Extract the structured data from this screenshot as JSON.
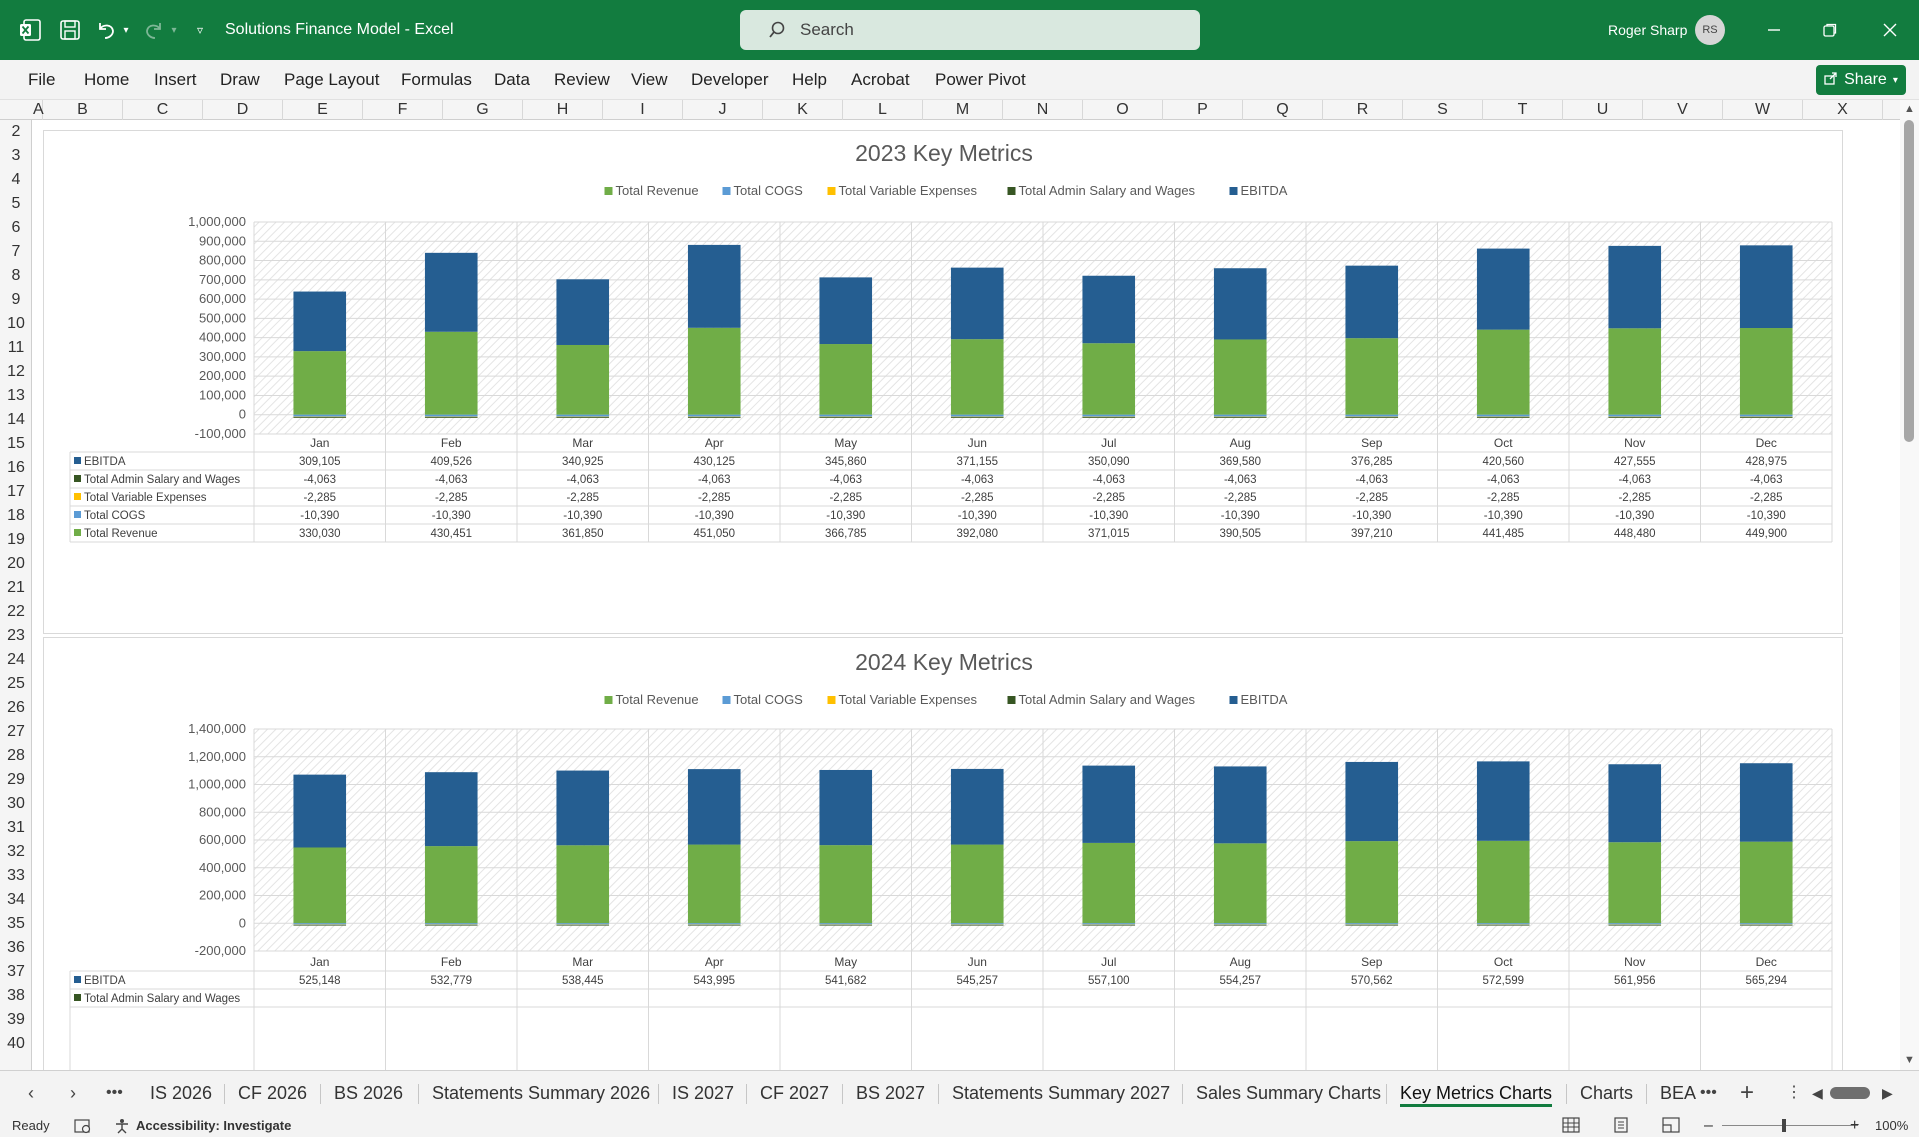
{
  "app": {
    "title": "Solutions Finance Model  -  Excel",
    "search_placeholder": "Search",
    "user_name": "Roger Sharp",
    "user_initials": "RS",
    "share_label": "Share",
    "accent": "#127c3f"
  },
  "ribbon_tabs": [
    "File",
    "Home",
    "Insert",
    "Draw",
    "Page Layout",
    "Formulas",
    "Data",
    "Review",
    "View",
    "Developer",
    "Help",
    "Acrobat",
    "Power Pivot"
  ],
  "columns": [
    "A",
    "B",
    "C",
    "D",
    "E",
    "F",
    "G",
    "H",
    "I",
    "J",
    "K",
    "L",
    "M",
    "N",
    "O",
    "P",
    "Q",
    "R",
    "S",
    "T",
    "U",
    "V",
    "W",
    "X"
  ],
  "rows": [
    "2",
    "3",
    "4",
    "5",
    "6",
    "7",
    "8",
    "9",
    "10",
    "11",
    "12",
    "13",
    "14",
    "15",
    "16",
    "17",
    "18",
    "19",
    "20",
    "21",
    "22",
    "23",
    "24",
    "25",
    "26",
    "27",
    "28",
    "29",
    "30",
    "31",
    "32",
    "33",
    "34",
    "35",
    "36",
    "37",
    "38",
    "39",
    "40"
  ],
  "sheet_tabs": [
    "IS 2026",
    "CF 2026",
    "BS 2026",
    "Statements Summary 2026",
    "IS 2027",
    "CF 2027",
    "BS 2027",
    "Statements Summary 2027",
    "Sales Summary Charts",
    "Key Metrics Charts",
    "Charts",
    "BEA"
  ],
  "active_sheet": "Key Metrics Charts",
  "status": {
    "ready": "Ready",
    "accessibility": "Accessibility: Investigate",
    "zoom": "100%"
  },
  "colors": {
    "Total Revenue": "#70ad47",
    "Total COGS": "#5b9bd5",
    "Total Variable Expenses": "#ffc000",
    "Total Admin Salary and Wages": "#375623",
    "EBITDA": "#255e91"
  },
  "chart_data": [
    {
      "type": "bar",
      "stacked": true,
      "title": "2023 Key Metrics",
      "categories": [
        "Jan",
        "Feb",
        "Mar",
        "Apr",
        "May",
        "Jun",
        "Jul",
        "Aug",
        "Sep",
        "Oct",
        "Nov",
        "Dec"
      ],
      "series": [
        {
          "name": "Total Revenue",
          "values": [
            330030,
            430451,
            361850,
            451050,
            366785,
            392080,
            371015,
            390505,
            397210,
            441485,
            448480,
            449900
          ],
          "labels": [
            "330,030",
            "430,451",
            "361,850",
            "451,050",
            "366,785",
            "392,080",
            "371,015",
            "390,505",
            "397,210",
            "441,485",
            "448,480",
            "449,900"
          ]
        },
        {
          "name": "Total COGS",
          "values": [
            -10390,
            -10390,
            -10390,
            -10390,
            -10390,
            -10390,
            -10390,
            -10390,
            -10390,
            -10390,
            -10390,
            -10390
          ],
          "labels": [
            "-10,390",
            "-10,390",
            "-10,390",
            "-10,390",
            "-10,390",
            "-10,390",
            "-10,390",
            "-10,390",
            "-10,390",
            "-10,390",
            "-10,390",
            "-10,390"
          ]
        },
        {
          "name": "Total Variable Expenses",
          "values": [
            -2285,
            -2285,
            -2285,
            -2285,
            -2285,
            -2285,
            -2285,
            -2285,
            -2285,
            -2285,
            -2285,
            -2285
          ],
          "labels": [
            "-2,285",
            "-2,285",
            "-2,285",
            "-2,285",
            "-2,285",
            "-2,285",
            "-2,285",
            "-2,285",
            "-2,285",
            "-2,285",
            "-2,285",
            "-2,285"
          ]
        },
        {
          "name": "Total Admin Salary and Wages",
          "values": [
            -4063,
            -4063,
            -4063,
            -4063,
            -4063,
            -4063,
            -4063,
            -4063,
            -4063,
            -4063,
            -4063,
            -4063
          ],
          "labels": [
            "-4,063",
            "-4,063",
            "-4,063",
            "-4,063",
            "-4,063",
            "-4,063",
            "-4,063",
            "-4,063",
            "-4,063",
            "-4,063",
            "-4,063",
            "-4,063"
          ]
        },
        {
          "name": "EBITDA",
          "values": [
            309105,
            409526,
            340925,
            430125,
            345860,
            371155,
            350090,
            369580,
            376285,
            420560,
            427555,
            428975
          ],
          "labels": [
            "309,105",
            "409,526",
            "340,925",
            "430,125",
            "345,860",
            "371,155",
            "350,090",
            "369,580",
            "376,285",
            "420,560",
            "427,555",
            "428,975"
          ]
        }
      ],
      "legend_order": [
        "Total Revenue",
        "Total COGS",
        "Total Variable Expenses",
        "Total Admin Salary and Wages",
        "EBITDA"
      ],
      "table_order": [
        "EBITDA",
        "Total Admin Salary and Wages",
        "Total Variable Expenses",
        "Total COGS",
        "Total Revenue"
      ],
      "ylim": [
        -100000,
        1000000
      ],
      "yticks": [
        -100000,
        0,
        100000,
        200000,
        300000,
        400000,
        500000,
        600000,
        700000,
        800000,
        900000,
        1000000
      ],
      "ytick_labels": [
        "-100,000",
        "0",
        "100,000",
        "200,000",
        "300,000",
        "400,000",
        "500,000",
        "600,000",
        "700,000",
        "800,000",
        "900,000",
        "1,000,000"
      ],
      "legend_position": "top",
      "data_table": true
    },
    {
      "type": "bar",
      "stacked": true,
      "title": "2024 Key Metrics",
      "categories": [
        "Jan",
        "Feb",
        "Mar",
        "Apr",
        "May",
        "Jun",
        "Jul",
        "Aug",
        "Sep",
        "Oct",
        "Nov",
        "Dec"
      ],
      "series": [
        {
          "name": "Total Revenue",
          "values": [
            546000,
            556000,
            562000,
            567000,
            563000,
            567000,
            579000,
            576000,
            592000,
            594000,
            584000,
            588000
          ]
        },
        {
          "name": "Total COGS",
          "values": [
            -10390,
            -10390,
            -10390,
            -10390,
            -10390,
            -10390,
            -10390,
            -10390,
            -10390,
            -10390,
            -10390,
            -10390
          ]
        },
        {
          "name": "Total Variable Expenses",
          "values": [
            -2285,
            -2285,
            -2285,
            -2285,
            -2285,
            -2285,
            -2285,
            -2285,
            -2285,
            -2285,
            -2285,
            -2285
          ]
        },
        {
          "name": "Total Admin Salary and Wages",
          "values": [
            -4063,
            -4063,
            -4063,
            -4063,
            -4063,
            -4063,
            -4063,
            -4063,
            -4063,
            -4063,
            -4063,
            -4063
          ]
        },
        {
          "name": "EBITDA",
          "values": [
            525148,
            532779,
            538445,
            543995,
            541682,
            545257,
            557100,
            554257,
            570562,
            572599,
            561956,
            565294
          ],
          "labels": [
            "525,148",
            "532,779",
            "538,445",
            "543,995",
            "541,682",
            "545,257",
            "557,100",
            "554,257",
            "570,562",
            "572,599",
            "561,956",
            "565,294"
          ]
        }
      ],
      "legend_order": [
        "Total Revenue",
        "Total COGS",
        "Total Variable Expenses",
        "Total Admin Salary and Wages",
        "EBITDA"
      ],
      "table_order": [
        "EBITDA",
        "Total Admin Salary and Wages"
      ],
      "ylim": [
        -200000,
        1400000
      ],
      "yticks": [
        -200000,
        0,
        200000,
        400000,
        600000,
        800000,
        1000000,
        1200000,
        1400000
      ],
      "ytick_labels": [
        "-200,000",
        "0",
        "200,000",
        "400,000",
        "600,000",
        "800,000",
        "1,000,000",
        "1,200,000",
        "1,400,000"
      ],
      "legend_position": "top",
      "data_table": true
    }
  ]
}
